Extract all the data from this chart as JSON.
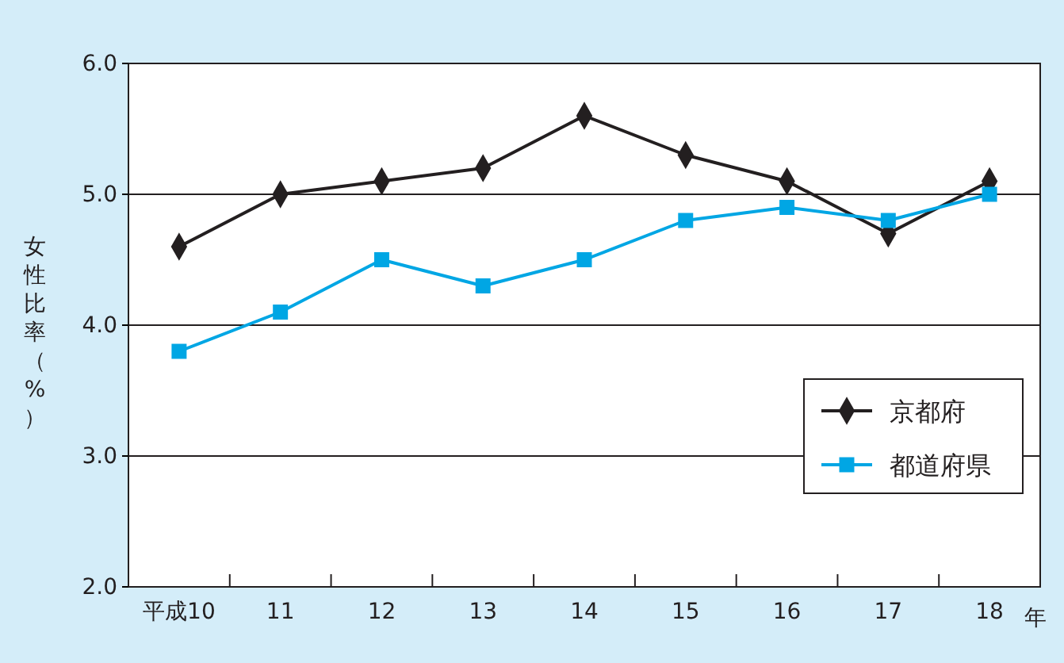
{
  "chart_data": {
    "type": "line",
    "xlabel": "年",
    "ylabel": "女性比率（%）",
    "categories": [
      "平成10",
      "11",
      "12",
      "13",
      "14",
      "15",
      "16",
      "17",
      "18"
    ],
    "series": [
      {
        "name": "京都府",
        "color": "#231f20",
        "marker": "diamond",
        "values": [
          4.6,
          5.0,
          5.1,
          5.2,
          5.6,
          5.3,
          5.1,
          4.7,
          5.1
        ]
      },
      {
        "name": "都道府県",
        "color": "#00a6e4",
        "marker": "square",
        "values": [
          3.8,
          4.1,
          4.5,
          4.3,
          4.5,
          4.8,
          4.9,
          4.8,
          5.0
        ]
      }
    ],
    "ylim": [
      2,
      6
    ],
    "yticks": [
      {
        "value": 2,
        "label": "2.0"
      },
      {
        "value": 3,
        "label": "3.0"
      },
      {
        "value": 4,
        "label": "4.0"
      },
      {
        "value": 5,
        "label": "5.0"
      },
      {
        "value": 6,
        "label": "6.0"
      }
    ],
    "grid": "y",
    "legend": "bottom right",
    "line_style": "solid"
  }
}
